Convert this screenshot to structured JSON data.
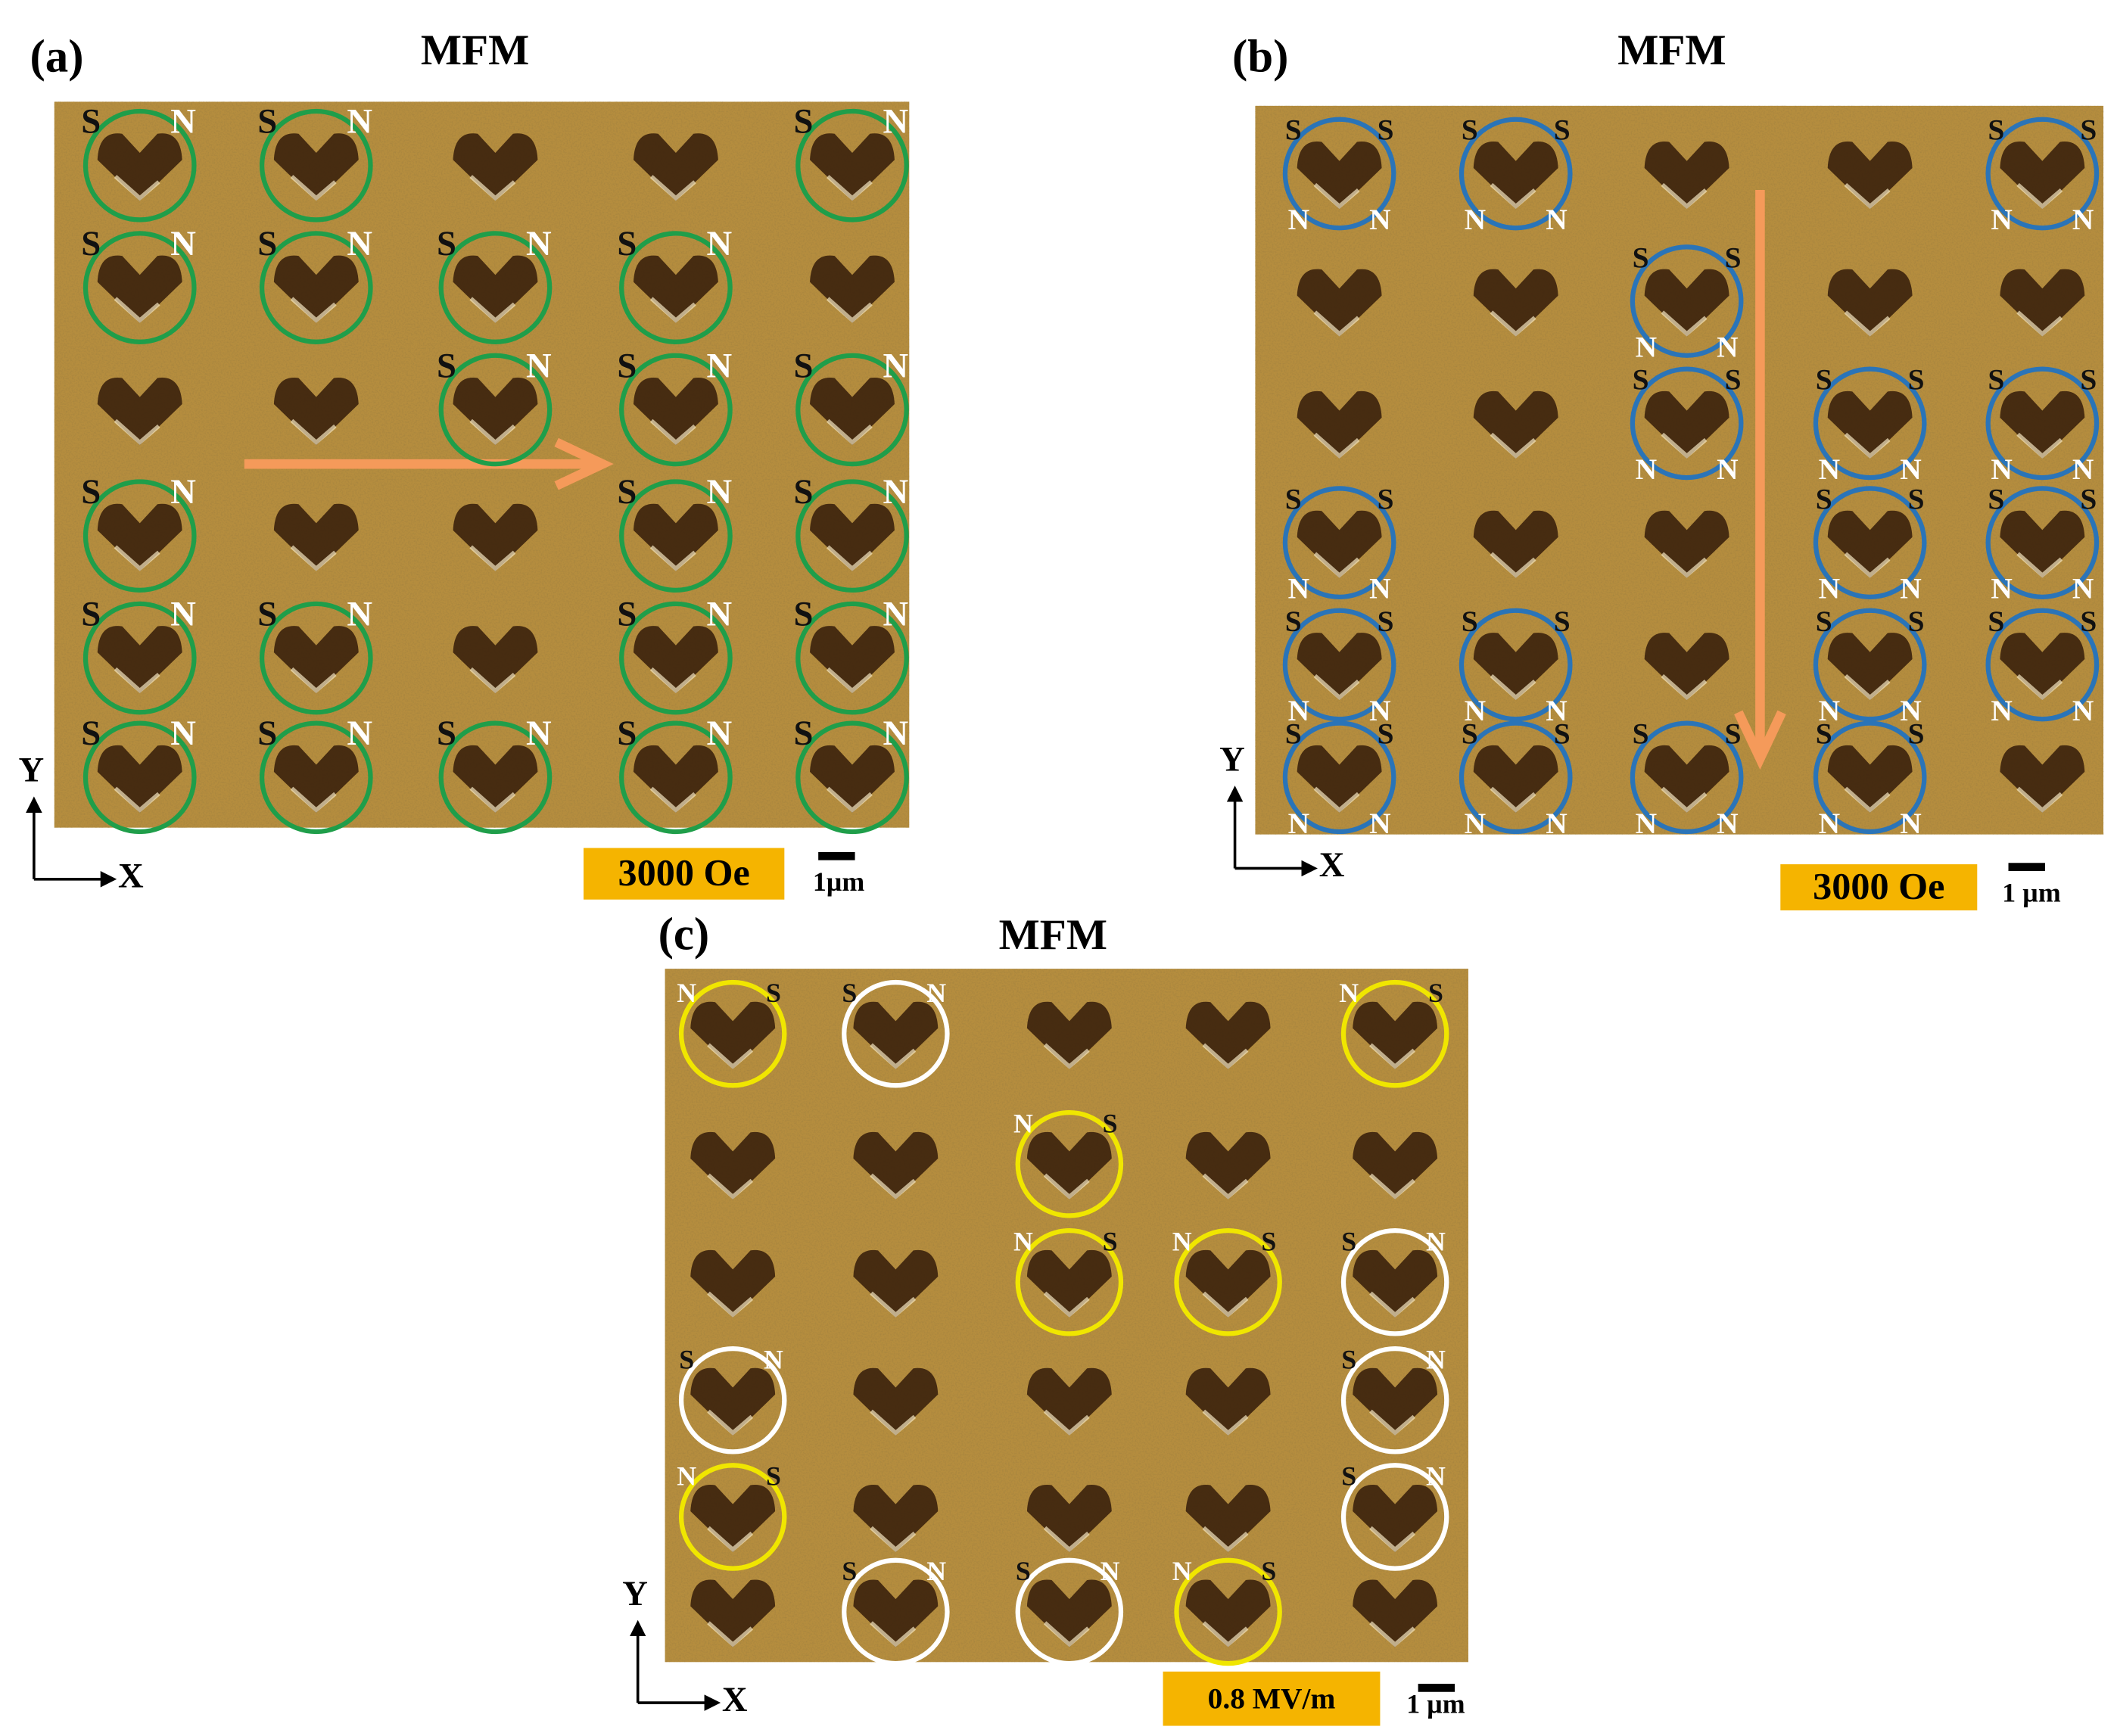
{
  "panels": [
    {
      "label": "(a)",
      "title": "MFM",
      "axis": {
        "x": "X",
        "y": "Y"
      },
      "field": "3000 Oe",
      "scale": "1µm",
      "circle_color": "#1f9e4a",
      "label_colors": {
        "S": "#111111",
        "N": "#ffffff"
      },
      "grid": [
        [
          [
            "S",
            "N"
          ],
          [
            "S",
            "N"
          ],
          null,
          null,
          [
            "S",
            "N"
          ]
        ],
        [
          [
            "S",
            "N"
          ],
          [
            "S",
            "N"
          ],
          [
            "S",
            "N"
          ],
          [
            "S",
            "N"
          ],
          null
        ],
        [
          null,
          null,
          [
            "S",
            "N"
          ],
          [
            "S",
            "N"
          ],
          [
            "S",
            "N"
          ]
        ],
        [
          [
            "S",
            "N"
          ],
          null,
          null,
          [
            "S",
            "N"
          ],
          [
            "S",
            "N"
          ]
        ],
        [
          [
            "S",
            "N"
          ],
          [
            "S",
            "N"
          ],
          null,
          [
            "S",
            "N"
          ],
          [
            "S",
            "N"
          ]
        ],
        [
          [
            "S",
            "N"
          ],
          [
            "S",
            "N"
          ],
          [
            "S",
            "N"
          ],
          [
            "S",
            "N"
          ],
          [
            "S",
            "N"
          ]
        ]
      ]
    },
    {
      "label": "(b)",
      "title": "MFM",
      "axis": {
        "x": "X",
        "y": "Y"
      },
      "field": "3000 Oe",
      "scale": "1 µm",
      "circle_color": "#2a74b8",
      "label_colors": {
        "S": "#111111",
        "N": "#ffffff"
      },
      "grid": [
        [
          [
            "S",
            "S",
            "N",
            "N"
          ],
          [
            "S",
            "S",
            "N",
            "N"
          ],
          null,
          null,
          [
            "S",
            "S",
            "N",
            "N"
          ]
        ],
        [
          null,
          null,
          [
            "S",
            "S",
            "N",
            "N"
          ],
          null,
          null
        ],
        [
          null,
          null,
          [
            "S",
            "S",
            "N",
            "N"
          ],
          [
            "S",
            "S",
            "N",
            "N"
          ],
          [
            "S",
            "S",
            "N",
            "N"
          ]
        ],
        [
          [
            "S",
            "S",
            "N",
            "N"
          ],
          null,
          null,
          [
            "S",
            "S",
            "N",
            "N"
          ],
          [
            "S",
            "S",
            "N",
            "N"
          ]
        ],
        [
          [
            "S",
            "S",
            "N",
            "N"
          ],
          [
            "S",
            "S",
            "N",
            "N"
          ],
          null,
          [
            "S",
            "S",
            "N",
            "N"
          ],
          [
            "S",
            "S",
            "N",
            "N"
          ]
        ],
        [
          [
            "S",
            "S",
            "N",
            "N"
          ],
          [
            "S",
            "S",
            "N",
            "N"
          ],
          [
            "S",
            "S",
            "N",
            "N"
          ],
          [
            "S",
            "S",
            "N",
            "N"
          ],
          null
        ]
      ]
    },
    {
      "label": "(c)",
      "title": "MFM",
      "axis": {
        "x": "X",
        "y": "Y"
      },
      "field": "0.8 MV/m",
      "scale": "1 µm",
      "label_colors": {
        "S": "#111111",
        "N": "#ffffff"
      },
      "grid": [
        [
          {
            "circle": "#f0e600",
            "labels": [
              "N",
              "S"
            ]
          },
          {
            "circle": "#ffffff",
            "labels": [
              "S",
              "N"
            ]
          },
          null,
          null,
          {
            "circle": "#f0e600",
            "labels": [
              "N",
              "S"
            ]
          }
        ],
        [
          null,
          null,
          {
            "circle": "#f0e600",
            "labels": [
              "N",
              "S"
            ]
          },
          null,
          null
        ],
        [
          null,
          null,
          {
            "circle": "#f0e600",
            "labels": [
              "N",
              "S"
            ]
          },
          {
            "circle": "#f0e600",
            "labels": [
              "N",
              "S"
            ]
          },
          {
            "circle": "#ffffff",
            "labels": [
              "S",
              "N"
            ]
          }
        ],
        [
          {
            "circle": "#ffffff",
            "labels": [
              "S",
              "N"
            ]
          },
          null,
          null,
          null,
          {
            "circle": "#ffffff",
            "labels": [
              "S",
              "N"
            ]
          }
        ],
        [
          {
            "circle": "#f0e600",
            "labels": [
              "N",
              "S"
            ]
          },
          null,
          null,
          null,
          {
            "circle": "#ffffff",
            "labels": [
              "S",
              "N"
            ]
          }
        ],
        [
          null,
          {
            "circle": "#ffffff",
            "labels": [
              "S",
              "N"
            ]
          },
          {
            "circle": "#ffffff",
            "labels": [
              "S",
              "N"
            ]
          },
          {
            "circle": "#f0e600",
            "labels": [
              "N",
              "S"
            ]
          },
          null
        ]
      ]
    }
  ]
}
